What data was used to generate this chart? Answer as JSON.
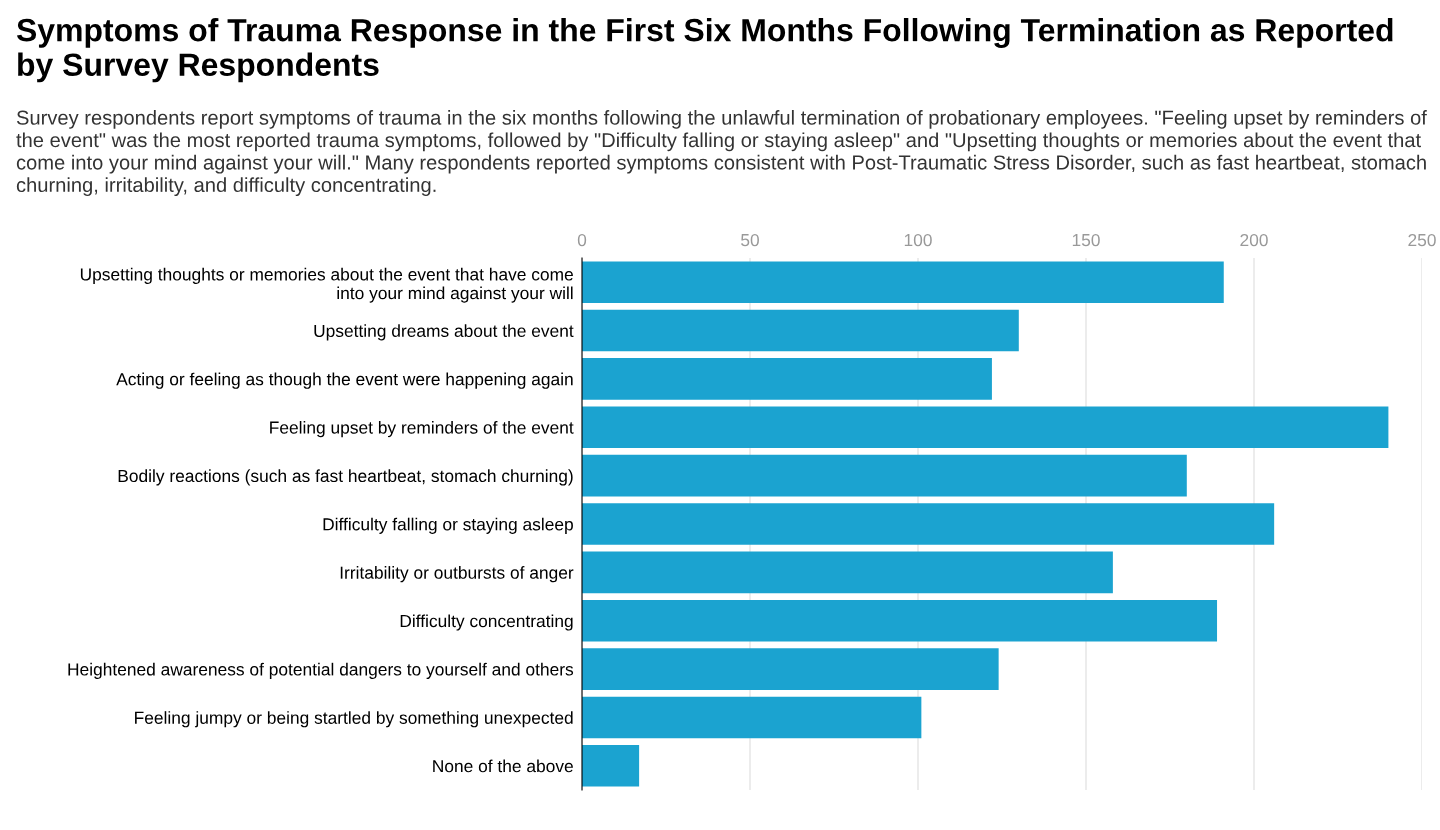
{
  "chart_data": {
    "type": "bar",
    "orientation": "horizontal",
    "title": "Symptoms of Trauma Response in the First Six Months Following Termination as Reported by Survey Respondents",
    "subtitle": "Survey respondents report symptoms of trauma in the six months following the unlawful termination of probationary employees. \"Feeling upset by reminders of the event\" was the most reported trauma symptoms, followed by \"Difficulty falling or staying asleep\" and \"Upsetting thoughts or memories about the event that come into your mind against your will.\" Many respondents reported symptoms consistent with Post-Traumatic Stress Disorder, such as fast heartbeat, stomach churning, irritability, and difficulty concentrating.",
    "categories": [
      "Upsetting thoughts or memories about the event that have come\ninto your mind against your will",
      "Upsetting dreams about the event",
      "Acting or feeling as though the event were happening again",
      "Feeling upset by reminders of the event",
      "Bodily reactions (such as fast heartbeat, stomach churning)",
      "Difficulty falling or staying asleep",
      "Irritability or outbursts of anger",
      "Difficulty concentrating",
      "Heightened awareness of potential dangers to yourself and others",
      "Feeling jumpy or being startled by something unexpected",
      "None of the above"
    ],
    "values": [
      191,
      130,
      122,
      240,
      180,
      206,
      158,
      189,
      124,
      101,
      17
    ],
    "color": "#1ba3d0",
    "xlim": [
      0,
      250
    ],
    "xticks": [
      0,
      50,
      100,
      150,
      200,
      250
    ],
    "grid": "x"
  }
}
